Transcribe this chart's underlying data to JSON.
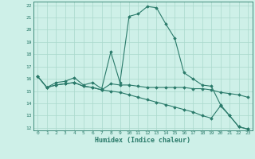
{
  "xlabel": "Humidex (Indice chaleur)",
  "bg_color": "#cef0e8",
  "grid_color": "#aad8cc",
  "line_color": "#2a7a6a",
  "xlim": [
    -0.5,
    23.5
  ],
  "ylim": [
    11.8,
    22.3
  ],
  "yticks": [
    12,
    13,
    14,
    15,
    16,
    17,
    18,
    19,
    20,
    21,
    22
  ],
  "xticks": [
    0,
    1,
    2,
    3,
    4,
    5,
    6,
    7,
    8,
    9,
    10,
    11,
    12,
    13,
    14,
    15,
    16,
    17,
    18,
    19,
    20,
    21,
    22,
    23
  ],
  "series": [
    {
      "x": [
        0,
        1,
        2,
        3,
        4,
        5,
        6,
        7,
        8,
        9,
        10,
        11,
        12,
        13,
        14,
        15,
        16,
        17,
        18,
        19,
        20,
        21,
        22,
        23
      ],
      "y": [
        16.2,
        15.3,
        15.7,
        15.8,
        16.1,
        15.5,
        15.7,
        15.2,
        18.2,
        15.7,
        21.1,
        21.3,
        21.9,
        21.8,
        20.5,
        19.3,
        16.5,
        16.0,
        15.5,
        15.4,
        13.9,
        13.0,
        12.1,
        11.9
      ]
    },
    {
      "x": [
        0,
        1,
        2,
        3,
        4,
        5,
        6,
        7,
        8,
        9,
        10,
        11,
        12,
        13,
        14,
        15,
        16,
        17,
        18,
        19,
        20,
        21,
        22,
        23
      ],
      "y": [
        16.2,
        15.3,
        15.5,
        15.6,
        15.7,
        15.4,
        15.3,
        15.1,
        15.6,
        15.5,
        15.5,
        15.4,
        15.3,
        15.3,
        15.3,
        15.3,
        15.3,
        15.2,
        15.2,
        15.1,
        14.9,
        14.8,
        14.7,
        14.5
      ]
    },
    {
      "x": [
        0,
        1,
        2,
        3,
        4,
        5,
        6,
        7,
        8,
        9,
        10,
        11,
        12,
        13,
        14,
        15,
        16,
        17,
        18,
        19,
        20,
        21,
        22,
        23
      ],
      "y": [
        16.2,
        15.3,
        15.5,
        15.6,
        15.7,
        15.4,
        15.3,
        15.1,
        15.0,
        14.9,
        14.7,
        14.5,
        14.3,
        14.1,
        13.9,
        13.7,
        13.5,
        13.3,
        13.0,
        12.8,
        13.8,
        13.0,
        12.1,
        11.9
      ]
    }
  ]
}
